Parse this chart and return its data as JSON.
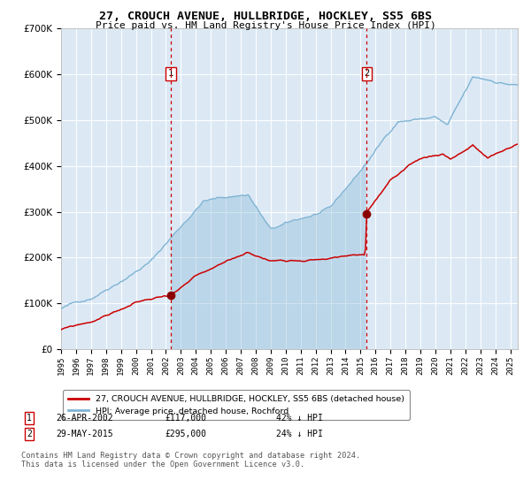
{
  "title": "27, CROUCH AVENUE, HULLBRIDGE, HOCKLEY, SS5 6BS",
  "subtitle": "Price paid vs. HM Land Registry's House Price Index (HPI)",
  "legend_line1": "27, CROUCH AVENUE, HULLBRIDGE, HOCKLEY, SS5 6BS (detached house)",
  "legend_line2": "HPI: Average price, detached house, Rochford",
  "sale1_date": "26-APR-2002",
  "sale1_price": 117000,
  "sale1_label": "42% ↓ HPI",
  "sale2_date": "29-MAY-2015",
  "sale2_price": 295000,
  "sale2_label": "24% ↓ HPI",
  "sale1_year": 2002.32,
  "sale2_year": 2015.41,
  "ylim": [
    0,
    700000
  ],
  "xlim_start": 1995.0,
  "xlim_end": 2025.5,
  "background_color": "#ffffff",
  "plot_bg_color": "#dce9f5",
  "grid_color": "#ffffff",
  "hpi_color": "#7fb3d3",
  "property_color": "#cc0000",
  "dashed_line_color": "#cc0000",
  "marker_color": "#8b0000",
  "footnote": "Contains HM Land Registry data © Crown copyright and database right 2024.\nThis data is licensed under the Open Government Licence v3.0."
}
